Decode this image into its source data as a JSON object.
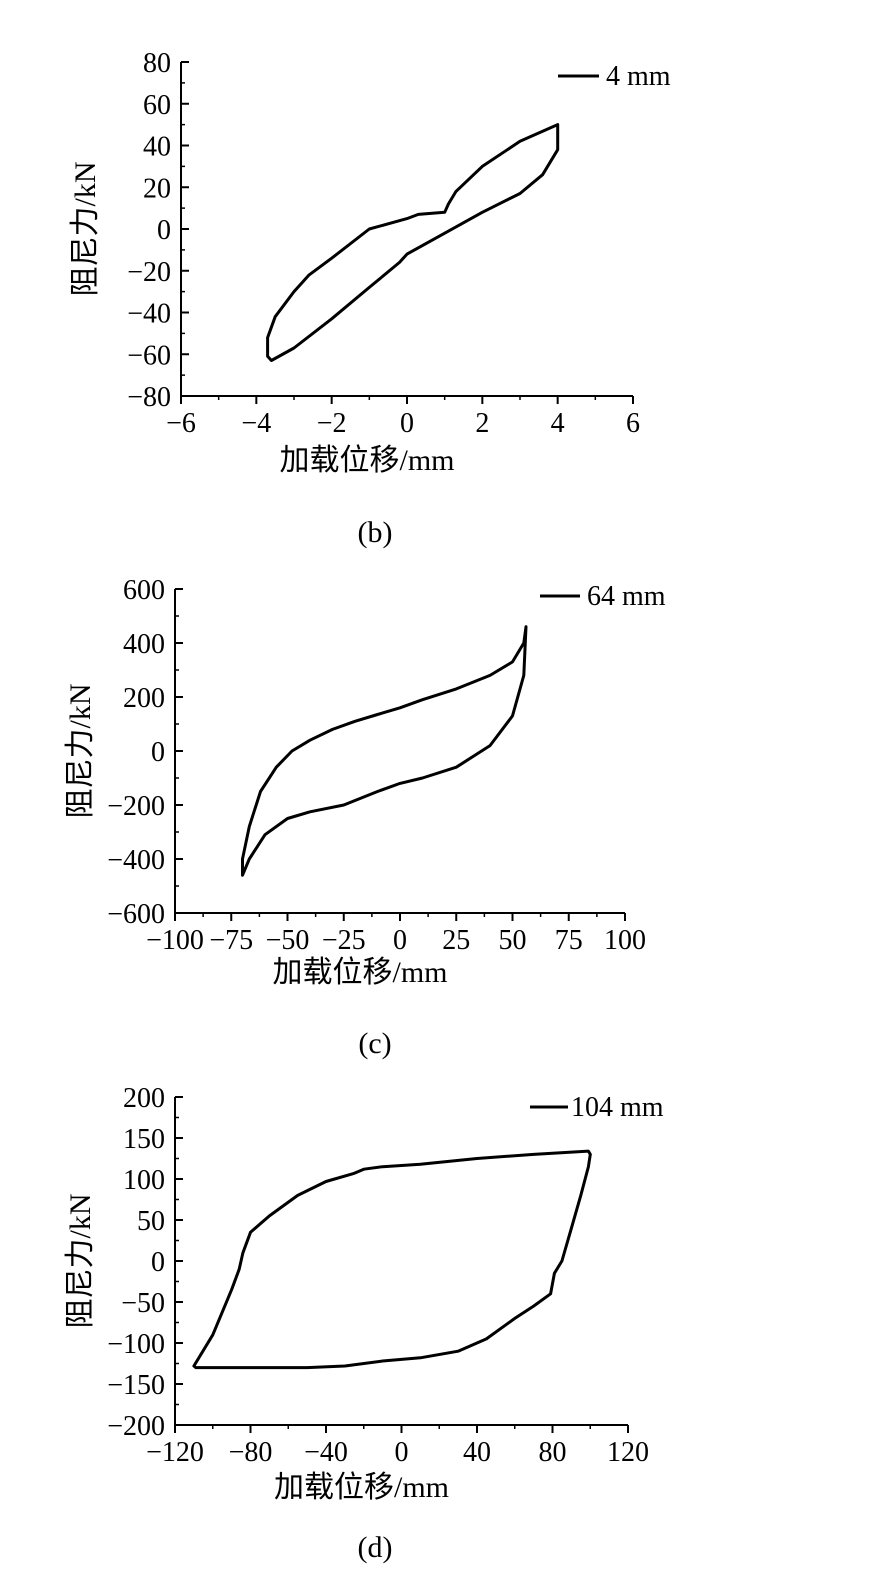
{
  "chart_data": [
    {
      "id": "b",
      "type": "line",
      "caption": "(b)",
      "xlabel": "加载位移/mm",
      "ylabel": "阻尼力/kN",
      "xlim": [
        -6,
        6
      ],
      "ylim": [
        -80,
        80
      ],
      "xticks": [
        -6,
        -4,
        -2,
        0,
        2,
        4,
        6
      ],
      "xtick_labels": [
        "−6",
        "−4",
        "−2",
        "0",
        "2",
        "4",
        "6"
      ],
      "yticks": [
        -80,
        -60,
        -40,
        -20,
        0,
        20,
        40,
        60,
        80
      ],
      "ytick_labels": [
        "−80",
        "−60",
        "−40",
        "−20",
        "0",
        "20",
        "40",
        "60",
        "80"
      ],
      "series": [
        {
          "name": "4 mm",
          "x": [
            4.0,
            3.0,
            2.0,
            1.3,
            1.1,
            1.0,
            0.3,
            0.0,
            -1.0,
            -2.0,
            -2.6,
            -3.0,
            -3.5,
            -3.7,
            -3.7,
            -3.6,
            -3.0,
            -2.0,
            -1.0,
            -0.2,
            0.0,
            1.0,
            2.0,
            3.0,
            3.6,
            4.0,
            4.0
          ],
          "y": [
            50,
            42,
            30,
            18,
            12,
            8,
            7,
            5,
            0,
            -14,
            -22,
            -30,
            -42,
            -52,
            -61,
            -63,
            -57,
            -43,
            -28,
            -16,
            -12,
            -2,
            8,
            17,
            26,
            38,
            50
          ]
        }
      ]
    },
    {
      "id": "c",
      "type": "line",
      "caption": "(c)",
      "xlabel": "加载位移/mm",
      "ylabel": "阻尼力/kN",
      "xlim": [
        -100,
        100
      ],
      "ylim": [
        -600,
        600
      ],
      "xticks": [
        -100,
        -75,
        -50,
        -25,
        0,
        25,
        50,
        75,
        100
      ],
      "xtick_labels": [
        "−100",
        "−75",
        "−50",
        "−25",
        "0",
        "25",
        "50",
        "75",
        "100"
      ],
      "yticks": [
        -600,
        -400,
        -200,
        0,
        200,
        400,
        600
      ],
      "ytick_labels": [
        "−600",
        "−400",
        "−200",
        "0",
        "200",
        "400",
        "600"
      ],
      "series": [
        {
          "name": "64 mm",
          "x": [
            56,
            55,
            50,
            40,
            25,
            10,
            0,
            -10,
            -20,
            -30,
            -40,
            -48,
            -55,
            -62,
            -67,
            -70,
            -70,
            -67,
            -60,
            -50,
            -40,
            -25,
            -10,
            0,
            10,
            25,
            40,
            50,
            55,
            56
          ],
          "y": [
            460,
            400,
            330,
            280,
            230,
            190,
            160,
            135,
            110,
            80,
            40,
            0,
            -60,
            -150,
            -280,
            -400,
            -460,
            -400,
            -310,
            -250,
            -225,
            -200,
            -150,
            -120,
            -100,
            -60,
            20,
            130,
            280,
            460
          ]
        }
      ]
    },
    {
      "id": "d",
      "type": "line",
      "caption": "(d)",
      "xlabel": "加载位移/mm",
      "ylabel": "阻尼力/kN",
      "xlim": [
        -120,
        120
      ],
      "ylim": [
        -200,
        200
      ],
      "xticks": [
        -120,
        -80,
        -40,
        0,
        40,
        80,
        120
      ],
      "xtick_labels": [
        "−120",
        "−80",
        "−40",
        "0",
        "40",
        "80",
        "120"
      ],
      "yticks": [
        -200,
        -150,
        -100,
        -50,
        0,
        50,
        100,
        150,
        200
      ],
      "ytick_labels": [
        "−200",
        "−150",
        "−100",
        "−50",
        "0",
        "50",
        "100",
        "150",
        "200"
      ],
      "series": [
        {
          "name": "104 mm",
          "x": [
            100,
            99,
            95,
            90,
            85,
            81,
            79,
            70,
            60,
            45,
            30,
            10,
            -10,
            -30,
            -50,
            -70,
            -90,
            -109,
            -110,
            -100,
            -90,
            -86,
            -84,
            -80,
            -70,
            -55,
            -40,
            -25,
            -20,
            -10,
            10,
            40,
            70,
            99,
            100
          ],
          "y": [
            130,
            115,
            80,
            40,
            0,
            -15,
            -40,
            -55,
            -70,
            -95,
            -110,
            -118,
            -122,
            -128,
            -130,
            -130,
            -130,
            -130,
            -128,
            -90,
            -35,
            -10,
            10,
            35,
            55,
            80,
            97,
            107,
            112,
            115,
            118,
            125,
            130,
            134,
            130
          ]
        }
      ]
    }
  ]
}
